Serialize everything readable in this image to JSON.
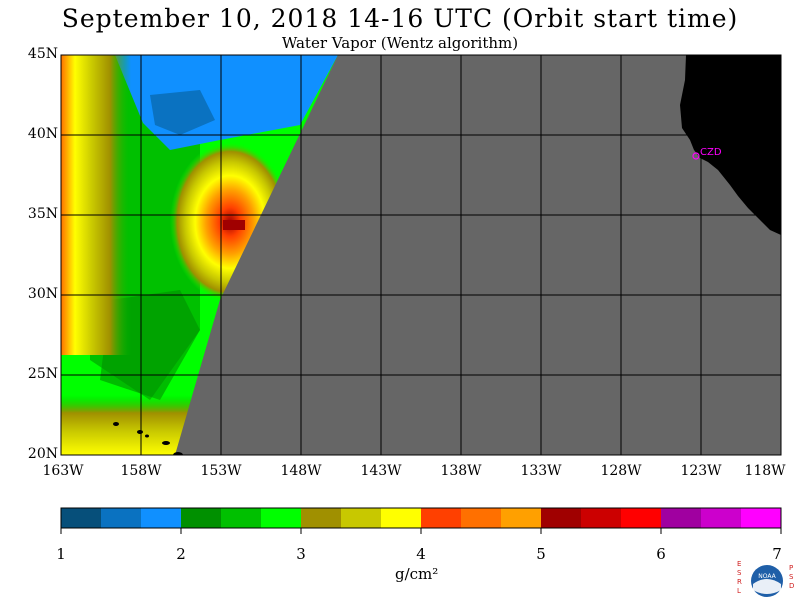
{
  "title": "September 10, 2018  14-16 UTC  (Orbit start time)",
  "subtitle": "Water Vapor (Wentz algorithm)",
  "map": {
    "lat_labels": [
      "45N",
      "40N",
      "35N",
      "30N",
      "25N",
      "20N"
    ],
    "lon_labels": [
      "163W",
      "158W",
      "153W",
      "148W",
      "143W",
      "138W",
      "133W",
      "128W",
      "123W",
      "118W"
    ],
    "station_label": "CZD",
    "colors": {
      "no_data": "#666666",
      "land": "#000000",
      "station": "#ff00ff",
      "grid": "#000000"
    }
  },
  "colorbar": {
    "tick_labels": [
      "1",
      "2",
      "3",
      "4",
      "5",
      "6",
      "7"
    ],
    "units": "g/cm²",
    "colors": [
      "#064f7a",
      "#0a72c1",
      "#1090ff",
      "#009000",
      "#00c000",
      "#00ff00",
      "#a09000",
      "#c8c800",
      "#ffff00",
      "#ff4000",
      "#ff7000",
      "#ffa000",
      "#a00000",
      "#cc0000",
      "#ff0000",
      "#a000a0",
      "#cc00cc",
      "#ff00ff"
    ]
  },
  "logo": {
    "left_letters": "ESRL",
    "right_letters": "PSD",
    "center_text": "NOAA"
  }
}
